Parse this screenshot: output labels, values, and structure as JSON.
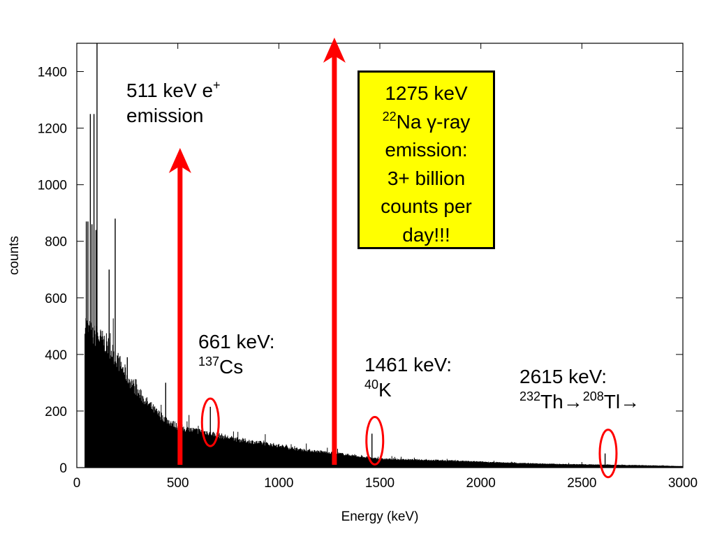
{
  "chart_data": {
    "type": "bar",
    "xlabel": "Energy (keV)",
    "ylabel": "counts",
    "xlim": [
      0,
      3000
    ],
    "ylim": [
      0,
      1500
    ],
    "xticks": [
      0,
      500,
      1000,
      1500,
      2000,
      2500,
      3000
    ],
    "yticks": [
      0,
      200,
      400,
      600,
      800,
      1000,
      1200,
      1400
    ],
    "grid": false,
    "spectrum_envelope": {
      "x": [
        40,
        50,
        60,
        80,
        100,
        150,
        200,
        250,
        300,
        350,
        400,
        450,
        500,
        550,
        600,
        650,
        700,
        800,
        900,
        1000,
        1100,
        1200,
        1300,
        1400,
        1500,
        1600,
        1800,
        2000,
        2200,
        2400,
        2600,
        2800,
        3000
      ],
      "y": [
        500,
        480,
        470,
        450,
        450,
        420,
        370,
        310,
        260,
        220,
        185,
        160,
        140,
        130,
        125,
        120,
        110,
        95,
        85,
        75,
        62,
        55,
        48,
        38,
        30,
        28,
        25,
        20,
        15,
        12,
        10,
        8,
        5
      ]
    },
    "spikes": [
      {
        "x": 47,
        "y": 870
      },
      {
        "x": 55,
        "y": 870
      },
      {
        "x": 67,
        "y": 1250
      },
      {
        "x": 75,
        "y": 860
      },
      {
        "x": 85,
        "y": 1250
      },
      {
        "x": 95,
        "y": 840
      },
      {
        "x": 100,
        "y": 1500
      },
      {
        "x": 160,
        "y": 700
      },
      {
        "x": 190,
        "y": 880
      },
      {
        "x": 250,
        "y": 390
      },
      {
        "x": 440,
        "y": 300
      },
      {
        "x": 661,
        "y": 215
      },
      {
        "x": 1461,
        "y": 120
      },
      {
        "x": 2615,
        "y": 50
      }
    ],
    "arrows": [
      {
        "x": 511,
        "y_to": 1130
      },
      {
        "x": 1275,
        "y_to": 1520
      }
    ],
    "highlight_ellipses": [
      {
        "x": 661,
        "y": 160
      },
      {
        "x": 1475,
        "y": 95
      },
      {
        "x": 2630,
        "y": 50
      }
    ],
    "colors": {
      "spectrum": "#000000",
      "arrow": "#ff0000",
      "ellipse": "#ff0000",
      "box_fill": "#ffff00"
    }
  },
  "annotations": {
    "a511": {
      "line1": "511 keV e",
      "sup1": "+",
      "line2": "emission"
    },
    "a661": {
      "line1": "661 keV:",
      "sup": "137",
      "iso": "Cs"
    },
    "a1461": {
      "line1": "1461 keV:",
      "sup": "40",
      "iso": "K"
    },
    "a2615": {
      "line1": "2615 keV:",
      "sup1": "232",
      "part1": "Th→",
      "sup2": "208",
      "part2": "Tl→"
    },
    "box": {
      "line1": "1275 keV",
      "sup": "22",
      "line2": "Na γ-ray",
      "line3": "emission:",
      "line4": "3+ billion",
      "line5": "counts per",
      "line6": "day!!!"
    }
  }
}
